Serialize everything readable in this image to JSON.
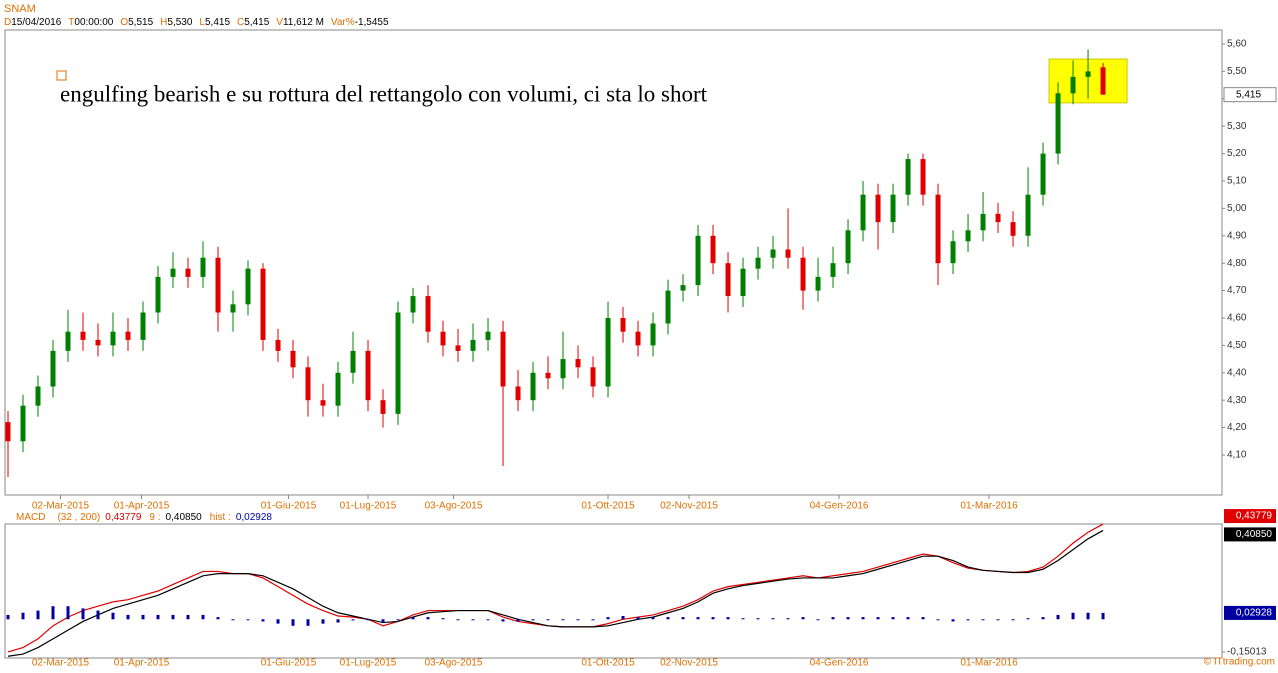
{
  "chart_data": [
    {
      "type": "candlestick",
      "title": "SNAM",
      "header": [
        {
          "key": "D",
          "value": "15/04/2016"
        },
        {
          "key": "T",
          "value": "00:00:00"
        },
        {
          "key": "O",
          "value": "5,515"
        },
        {
          "key": "H",
          "value": "5,530"
        },
        {
          "key": "L",
          "value": "5,415"
        },
        {
          "key": "C",
          "value": "5,415"
        },
        {
          "key": "V",
          "value": "11,612 M"
        },
        {
          "key": "Var%",
          "value": "-1,5455"
        }
      ],
      "annotation": "engulfing bearish e su rottura del rettangolo con volumi, ci sta lo short",
      "highlight": {
        "x": [
          69.4,
          74.6
        ],
        "y": [
          5.385,
          5.545
        ],
        "color": "#ffff00"
      },
      "x": [
        0,
        1,
        2,
        3,
        4,
        5,
        6,
        7,
        8,
        9,
        10,
        11,
        12,
        13,
        14,
        15,
        16,
        17,
        18,
        19,
        20,
        21,
        22,
        23,
        24,
        25,
        26,
        27,
        28,
        29,
        30,
        31,
        32,
        33,
        34,
        35,
        36,
        37,
        38,
        39,
        40,
        41,
        42,
        43,
        44,
        45,
        46,
        47,
        48,
        49,
        50,
        51,
        52,
        53,
        54,
        55,
        56,
        57,
        58,
        59,
        60,
        61,
        62,
        63,
        64,
        65,
        66,
        67,
        68,
        69,
        70,
        71,
        72,
        73
      ],
      "open": [
        4.22,
        4.15,
        4.28,
        4.35,
        4.48,
        4.55,
        4.52,
        4.5,
        4.55,
        4.52,
        4.62,
        4.75,
        4.78,
        4.75,
        4.82,
        4.62,
        4.65,
        4.78,
        4.52,
        4.48,
        4.42,
        4.3,
        4.28,
        4.4,
        4.48,
        4.3,
        4.25,
        4.62,
        4.68,
        4.55,
        4.5,
        4.48,
        4.52,
        4.55,
        4.35,
        4.3,
        4.4,
        4.38,
        4.45,
        4.42,
        4.35,
        4.6,
        4.55,
        4.5,
        4.58,
        4.7,
        4.72,
        4.9,
        4.8,
        4.68,
        4.78,
        4.82,
        4.85,
        4.82,
        4.7,
        4.75,
        4.8,
        4.92,
        5.05,
        4.95,
        5.05,
        5.18,
        5.05,
        4.8,
        4.88,
        4.92,
        4.98,
        4.95,
        4.9,
        5.05,
        5.2,
        5.42,
        5.48,
        5.515
      ],
      "high": [
        4.26,
        4.32,
        4.39,
        4.52,
        4.63,
        4.62,
        4.58,
        4.62,
        4.6,
        4.66,
        4.79,
        4.84,
        4.82,
        4.88,
        4.86,
        4.7,
        4.81,
        4.8,
        4.56,
        4.52,
        4.46,
        4.36,
        4.44,
        4.55,
        4.52,
        4.34,
        4.66,
        4.71,
        4.72,
        4.59,
        4.56,
        4.58,
        4.6,
        4.59,
        4.41,
        4.44,
        4.46,
        4.55,
        4.5,
        4.46,
        4.66,
        4.64,
        4.59,
        4.62,
        4.74,
        4.76,
        4.94,
        4.94,
        4.84,
        4.82,
        4.86,
        4.9,
        5.0,
        4.86,
        4.82,
        4.86,
        4.96,
        5.1,
        5.09,
        5.09,
        5.2,
        5.2,
        5.09,
        4.92,
        4.98,
        5.06,
        5.02,
        4.99,
        5.15,
        5.24,
        5.46,
        5.54,
        5.58,
        5.53
      ],
      "low": [
        4.02,
        4.11,
        4.24,
        4.31,
        4.44,
        4.48,
        4.46,
        4.46,
        4.48,
        4.48,
        4.58,
        4.71,
        4.71,
        4.71,
        4.55,
        4.55,
        4.61,
        4.48,
        4.44,
        4.38,
        4.24,
        4.24,
        4.24,
        4.36,
        4.26,
        4.2,
        4.21,
        4.58,
        4.51,
        4.46,
        4.44,
        4.44,
        4.48,
        4.06,
        4.26,
        4.26,
        4.34,
        4.34,
        4.38,
        4.31,
        4.31,
        4.51,
        4.46,
        4.46,
        4.54,
        4.66,
        4.68,
        4.76,
        4.62,
        4.64,
        4.74,
        4.78,
        4.78,
        4.63,
        4.66,
        4.71,
        4.76,
        4.88,
        4.85,
        4.91,
        5.01,
        5.01,
        4.72,
        4.76,
        4.84,
        4.88,
        4.91,
        4.86,
        4.86,
        5.01,
        5.16,
        5.38,
        5.4,
        5.415
      ],
      "close": [
        4.15,
        4.28,
        4.35,
        4.48,
        4.55,
        4.52,
        4.5,
        4.55,
        4.52,
        4.62,
        4.75,
        4.78,
        4.75,
        4.82,
        4.62,
        4.65,
        4.78,
        4.52,
        4.48,
        4.42,
        4.3,
        4.28,
        4.4,
        4.48,
        4.3,
        4.25,
        4.62,
        4.68,
        4.55,
        4.5,
        4.48,
        4.52,
        4.55,
        4.35,
        4.3,
        4.4,
        4.38,
        4.45,
        4.42,
        4.35,
        4.6,
        4.55,
        4.5,
        4.58,
        4.7,
        4.72,
        4.9,
        4.8,
        4.68,
        4.78,
        4.82,
        4.85,
        4.82,
        4.7,
        4.75,
        4.8,
        4.92,
        5.05,
        4.95,
        5.05,
        5.18,
        5.05,
        4.8,
        4.88,
        4.92,
        4.98,
        4.95,
        4.9,
        5.05,
        5.2,
        5.42,
        5.48,
        5.5,
        5.415
      ],
      "last_value_label": "5,415",
      "up_color": "#008000",
      "down_color": "#e00000",
      "xlim": [
        -0.2,
        80.93
      ],
      "xticks": [
        {
          "value": 3.5,
          "label": "02-Mar-2015"
        },
        {
          "value": 8.9,
          "label": "01-Apr-2015"
        },
        {
          "value": 18.7,
          "label": "01-Giu-2015"
        },
        {
          "value": 24,
          "label": "01-Lug-2015"
        },
        {
          "value": 29.7,
          "label": "03-Ago-2015"
        },
        {
          "value": 40,
          "label": "01-Ott-2015"
        },
        {
          "value": 45.4,
          "label": "02-Nov-2015"
        },
        {
          "value": 55.4,
          "label": "04-Gen-2016"
        },
        {
          "value": 65.4,
          "label": "01-Mar-2016"
        }
      ],
      "ylim": [
        3.954,
        5.651
      ],
      "yticks": [
        {
          "value": 5.6,
          "label": "5,60"
        },
        {
          "value": 5.5,
          "label": "5,50"
        },
        {
          "value": 5.4,
          "label": "5,40"
        },
        {
          "value": 5.3,
          "label": "5,30"
        },
        {
          "value": 5.2,
          "label": "5,20"
        },
        {
          "value": 5.1,
          "label": "5,10"
        },
        {
          "value": 5.0,
          "label": "5,00"
        },
        {
          "value": 4.9,
          "label": "4,90"
        },
        {
          "value": 4.8,
          "label": "4,80"
        },
        {
          "value": 4.7,
          "label": "4,70"
        },
        {
          "value": 4.6,
          "label": "4,60"
        },
        {
          "value": 4.5,
          "label": "4,50"
        },
        {
          "value": 4.4,
          "label": "4,40"
        },
        {
          "value": 4.3,
          "label": "4,30"
        },
        {
          "value": 4.2,
          "label": "4,20"
        },
        {
          "value": 4.1,
          "label": "4,10"
        }
      ]
    },
    {
      "type": "macd",
      "title": "MACD",
      "params": "(32 , 200)",
      "x": [
        0,
        1,
        2,
        3,
        4,
        5,
        6,
        7,
        8,
        9,
        10,
        11,
        12,
        13,
        14,
        15,
        16,
        17,
        18,
        19,
        20,
        21,
        22,
        23,
        24,
        25,
        26,
        27,
        28,
        29,
        30,
        31,
        32,
        33,
        34,
        35,
        36,
        37,
        38,
        39,
        40,
        41,
        42,
        43,
        44,
        45,
        46,
        47,
        48,
        49,
        50,
        51,
        52,
        53,
        54,
        55,
        56,
        57,
        58,
        59,
        60,
        61,
        62,
        63,
        64,
        65,
        66,
        67,
        68,
        69,
        70,
        71,
        72,
        73
      ],
      "series": [
        {
          "name": "MACD",
          "color": "#e00000",
          "label": "0,43779",
          "values": [
            -0.15,
            -0.13,
            -0.09,
            -0.03,
            0.01,
            0.04,
            0.06,
            0.08,
            0.09,
            0.11,
            0.13,
            0.16,
            0.19,
            0.22,
            0.22,
            0.21,
            0.21,
            0.19,
            0.15,
            0.11,
            0.07,
            0.04,
            0.015,
            0.01,
            0.0,
            -0.03,
            -0.01,
            0.02,
            0.04,
            0.04,
            0.04,
            0.04,
            0.04,
            0.01,
            -0.01,
            -0.02,
            -0.03,
            -0.035,
            -0.035,
            -0.035,
            -0.02,
            0.0,
            0.01,
            0.02,
            0.04,
            0.06,
            0.09,
            0.13,
            0.15,
            0.16,
            0.17,
            0.18,
            0.19,
            0.2,
            0.19,
            0.2,
            0.21,
            0.22,
            0.24,
            0.26,
            0.28,
            0.3,
            0.29,
            0.26,
            0.235,
            0.225,
            0.22,
            0.215,
            0.22,
            0.24,
            0.29,
            0.35,
            0.4,
            0.43779
          ]
        },
        {
          "name": "9 :",
          "color": "#000000",
          "label": "0,40850",
          "values": [
            -0.17,
            -0.16,
            -0.13,
            -0.09,
            -0.05,
            -0.01,
            0.02,
            0.05,
            0.07,
            0.09,
            0.11,
            0.14,
            0.17,
            0.2,
            0.21,
            0.21,
            0.21,
            0.2,
            0.17,
            0.14,
            0.1,
            0.06,
            0.03,
            0.015,
            0.0,
            -0.015,
            -0.01,
            0.01,
            0.03,
            0.035,
            0.04,
            0.04,
            0.04,
            0.02,
            0.0,
            -0.015,
            -0.03,
            -0.035,
            -0.035,
            -0.035,
            -0.03,
            -0.015,
            0.0,
            0.01,
            0.03,
            0.05,
            0.08,
            0.12,
            0.14,
            0.155,
            0.165,
            0.175,
            0.185,
            0.19,
            0.19,
            0.19,
            0.2,
            0.21,
            0.23,
            0.25,
            0.27,
            0.29,
            0.29,
            0.27,
            0.24,
            0.225,
            0.22,
            0.215,
            0.215,
            0.23,
            0.27,
            0.32,
            0.37,
            0.4085
          ]
        },
        {
          "name": "hist :",
          "color": "#0000a0",
          "label": "0,02928",
          "bars": true,
          "values": [
            0.02,
            0.03,
            0.04,
            0.06,
            0.06,
            0.05,
            0.04,
            0.03,
            0.02,
            0.02,
            0.02,
            0.02,
            0.02,
            0.02,
            0.01,
            0,
            0,
            -0.01,
            -0.02,
            -0.03,
            -0.03,
            -0.02,
            -0.015,
            -0.005,
            0,
            -0.015,
            0,
            0.01,
            0.01,
            0.005,
            0,
            0,
            0,
            -0.01,
            -0.01,
            -0.005,
            0,
            0,
            0,
            0,
            0.01,
            0.015,
            0.01,
            0.01,
            0.01,
            0.01,
            0.01,
            0.01,
            0.01,
            0.005,
            0.005,
            0.005,
            0.005,
            0.01,
            0,
            0.01,
            0.01,
            0.01,
            0.01,
            0.01,
            0.01,
            0.01,
            0,
            -0.01,
            -0.005,
            0,
            0,
            0,
            0.005,
            0.01,
            0.02,
            0.03,
            0.03,
            0.02928
          ]
        }
      ],
      "ylim": [
        -0.178,
        0.438
      ],
      "yticks": [
        {
          "value": -0.15013,
          "label": "-0,15013"
        }
      ]
    },
    {
      "type": "footer",
      "credit": "© ITtrading.com"
    }
  ]
}
